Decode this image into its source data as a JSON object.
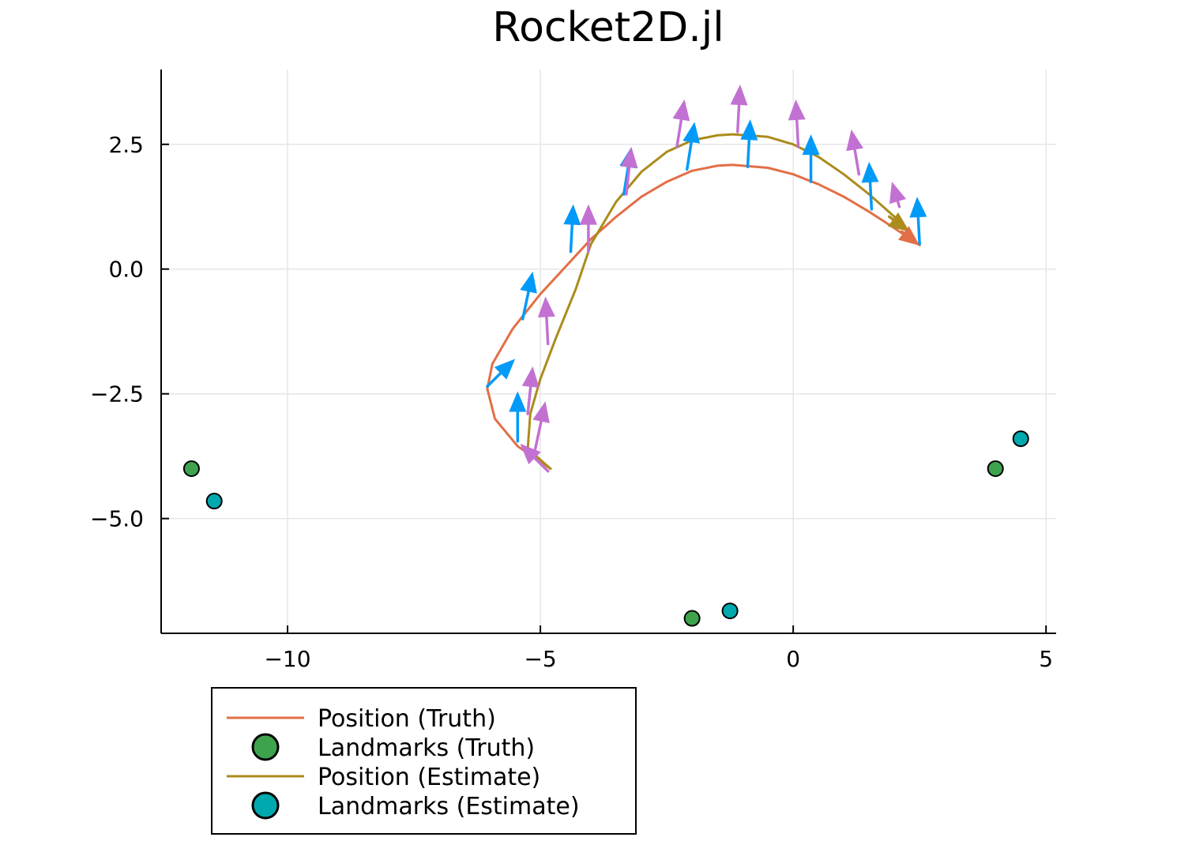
{
  "chart_data": {
    "type": "line",
    "title": "Rocket2D.jl",
    "xlabel": "",
    "ylabel": "",
    "xlim": [
      -12.5,
      5.2
    ],
    "ylim": [
      -7.3,
      4.0
    ],
    "grid": true,
    "legend_position": "outside-bottom-left",
    "x_ticks": [
      {
        "value": -10,
        "label": "−10"
      },
      {
        "value": -5,
        "label": "−5"
      },
      {
        "value": 0,
        "label": "0"
      },
      {
        "value": 5,
        "label": "5"
      }
    ],
    "y_ticks": [
      {
        "value": 2.5,
        "label": "2.5"
      },
      {
        "value": 0,
        "label": "0.0"
      },
      {
        "value": -2.5,
        "label": "−2.5"
      },
      {
        "value": -5,
        "label": "−5.0"
      }
    ],
    "series": [
      {
        "name": "Position (Truth)",
        "kind": "line",
        "color": "#e26f46",
        "x": [
          -4.8,
          -5.45,
          -5.9,
          -6.05,
          -5.95,
          -5.55,
          -5.0,
          -4.5,
          -4.0,
          -3.5,
          -3.0,
          -2.5,
          -2.0,
          -1.5,
          -1.2,
          -0.5,
          0.0,
          0.5,
          1.0,
          1.5,
          2.0,
          2.5
        ],
        "y": [
          -4.0,
          -3.55,
          -3.0,
          -2.4,
          -1.9,
          -1.2,
          -0.5,
          0.05,
          0.6,
          1.05,
          1.45,
          1.75,
          1.97,
          2.07,
          2.09,
          2.03,
          1.9,
          1.7,
          1.45,
          1.15,
          0.82,
          0.48
        ]
      },
      {
        "name": "Landmarks (Truth)",
        "kind": "scatter",
        "color": "#3da44d",
        "x": [
          -11.9,
          4.0,
          -2.0
        ],
        "y": [
          -4.0,
          -4.0,
          -7.0
        ]
      },
      {
        "name": "Position (Estimate)",
        "kind": "line",
        "color": "#ab8c1c",
        "x": [
          -4.8,
          -5.25,
          -5.2,
          -5.0,
          -4.7,
          -4.3,
          -4.0,
          -3.5,
          -3.0,
          -2.5,
          -2.0,
          -1.5,
          -1.2,
          -0.5,
          0.0,
          0.5,
          1.0,
          1.5,
          2.0,
          2.3
        ],
        "y": [
          -4.0,
          -3.6,
          -2.9,
          -2.2,
          -1.4,
          -0.4,
          0.5,
          1.35,
          1.95,
          2.35,
          2.58,
          2.68,
          2.7,
          2.65,
          2.5,
          2.25,
          1.9,
          1.5,
          1.05,
          0.75
        ]
      },
      {
        "name": "Landmarks (Estimate)",
        "kind": "scatter",
        "color": "#00a9ad",
        "x": [
          -11.45,
          4.5,
          -1.25
        ],
        "y": [
          -4.65,
          -3.4,
          -6.85
        ]
      }
    ],
    "arrows": [
      {
        "color": "#009af9",
        "x": -5.45,
        "y": -3.45,
        "dx": 0.0,
        "dy": 1.0
      },
      {
        "color": "#009af9",
        "x": -6.05,
        "y": -2.35,
        "dx": 0.55,
        "dy": 0.55
      },
      {
        "color": "#009af9",
        "x": -5.35,
        "y": -1.0,
        "dx": 0.2,
        "dy": 0.95
      },
      {
        "color": "#009af9",
        "x": -4.4,
        "y": 0.35,
        "dx": 0.05,
        "dy": 0.95
      },
      {
        "color": "#009af9",
        "x": -3.35,
        "y": 1.5,
        "dx": 0.15,
        "dy": 0.95
      },
      {
        "color": "#009af9",
        "x": -2.1,
        "y": 2.0,
        "dx": 0.15,
        "dy": 0.95
      },
      {
        "color": "#009af9",
        "x": -0.9,
        "y": 2.05,
        "dx": 0.05,
        "dy": 0.95
      },
      {
        "color": "#009af9",
        "x": 0.35,
        "y": 1.75,
        "dx": 0.0,
        "dy": 0.95
      },
      {
        "color": "#009af9",
        "x": 1.55,
        "y": 1.2,
        "dx": -0.05,
        "dy": 0.95
      },
      {
        "color": "#009af9",
        "x": 2.5,
        "y": 0.5,
        "dx": -0.05,
        "dy": 0.95
      },
      {
        "color": "#c271d2",
        "x": -4.85,
        "y": -4.05,
        "dx": -0.55,
        "dy": 0.55
      },
      {
        "color": "#c271d2",
        "x": -5.1,
        "y": -3.6,
        "dx": 0.2,
        "dy": 0.95
      },
      {
        "color": "#c271d2",
        "x": -5.25,
        "y": -2.9,
        "dx": 0.1,
        "dy": 0.95
      },
      {
        "color": "#c271d2",
        "x": -4.85,
        "y": -1.5,
        "dx": -0.05,
        "dy": 0.95
      },
      {
        "color": "#c271d2",
        "x": -4.05,
        "y": 0.35,
        "dx": 0.0,
        "dy": 0.95
      },
      {
        "color": "#c271d2",
        "x": -3.3,
        "y": 1.5,
        "dx": 0.1,
        "dy": 0.95
      },
      {
        "color": "#c271d2",
        "x": -2.3,
        "y": 2.45,
        "dx": 0.15,
        "dy": 0.95
      },
      {
        "color": "#c271d2",
        "x": -1.1,
        "y": 2.75,
        "dx": 0.05,
        "dy": 0.95
      },
      {
        "color": "#c271d2",
        "x": 0.1,
        "y": 2.45,
        "dx": -0.05,
        "dy": 0.95
      },
      {
        "color": "#c271d2",
        "x": 1.3,
        "y": 1.9,
        "dx": -0.15,
        "dy": 0.9
      },
      {
        "color": "#c271d2",
        "x": 2.1,
        "y": 1.25,
        "dx": -0.15,
        "dy": 0.5
      },
      {
        "color": "#ab8c1c",
        "x": 1.9,
        "y": 1.05,
        "dx": 0.4,
        "dy": -0.3
      },
      {
        "color": "#e26f46",
        "x": 2.15,
        "y": 0.75,
        "dx": 0.35,
        "dy": -0.28
      }
    ]
  }
}
